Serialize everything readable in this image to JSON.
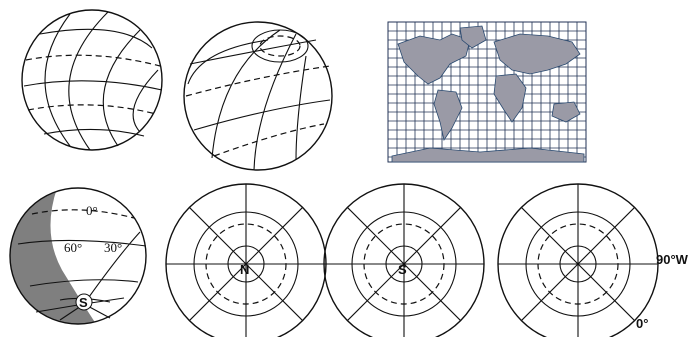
{
  "panels": {
    "globe_tilted": {
      "labels": []
    },
    "globe_pole": {
      "labels": []
    },
    "world_map": {
      "labels": []
    },
    "shaded_globe": {
      "equator_label": "0°",
      "lat60_label": "60°",
      "lat30_label": "30°",
      "pole_label": "S"
    },
    "polar_north": {
      "center_label": "N"
    },
    "polar_south": {
      "center_label": "S"
    },
    "polar_unlabeled": {
      "east_label": "90°W",
      "south_label": "0°"
    }
  },
  "colors": {
    "ink": "#111111",
    "shade": "#7f7f7f",
    "land": "#9a9aa6",
    "map_grid": "#223355"
  }
}
